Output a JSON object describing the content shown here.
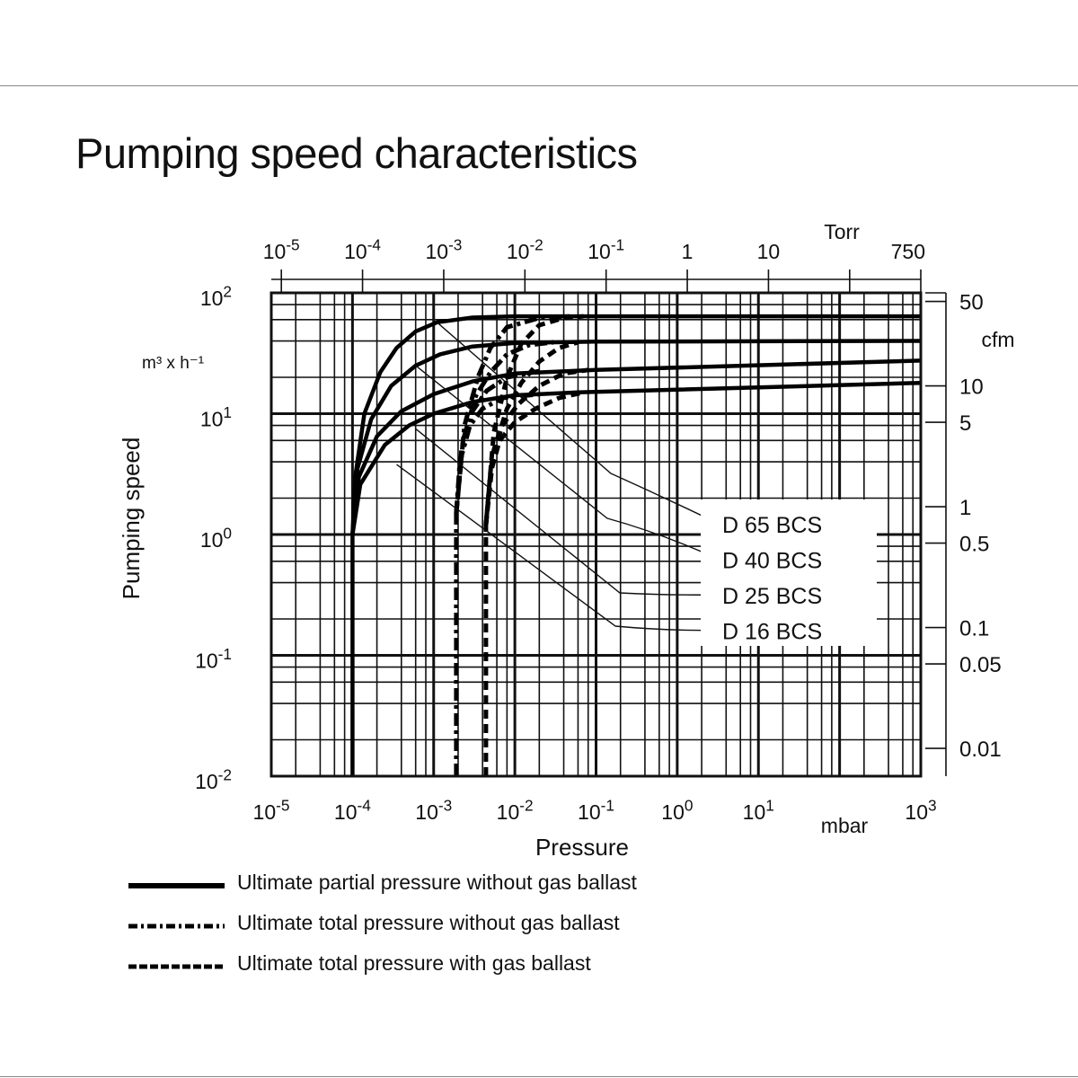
{
  "page": {
    "title": "Pumping speed characteristics"
  },
  "chart_data": {
    "type": "line",
    "title": "Pumping speed characteristics",
    "xlabel": "Pressure",
    "xunit": "mbar",
    "ylabel": "Pumping speed",
    "yunit": "m³ x h⁻¹",
    "xscale": "log",
    "yscale": "log",
    "xlim": [
      1e-05,
      1000
    ],
    "ylim": [
      0.01,
      100
    ],
    "grid": true,
    "x_ticks": [
      {
        "v": 1e-05,
        "b": "10",
        "e": "-5"
      },
      {
        "v": 0.0001,
        "b": "10",
        "e": "-4"
      },
      {
        "v": 0.001,
        "b": "10",
        "e": "-3"
      },
      {
        "v": 0.01,
        "b": "10",
        "e": "-2"
      },
      {
        "v": 0.1,
        "b": "10",
        "e": "-1"
      },
      {
        "v": 1,
        "b": "10",
        "e": "0"
      },
      {
        "v": 10,
        "b": "10",
        "e": "1"
      },
      {
        "v": 1000,
        "b": "10",
        "e": "3"
      }
    ],
    "y_ticks": [
      {
        "v": 100,
        "b": "10",
        "e": "2"
      },
      {
        "v": 10,
        "b": "10",
        "e": "1"
      },
      {
        "v": 1,
        "b": "10",
        "e": "0"
      },
      {
        "v": 0.1,
        "b": "10",
        "e": "-1"
      },
      {
        "v": 0.01,
        "b": "10",
        "e": "-2"
      }
    ],
    "top_axis": {
      "unit": "Torr",
      "ticks": [
        {
          "v": 1.33e-05,
          "b": "10",
          "e": "-5"
        },
        {
          "v": 0.000133,
          "b": "10",
          "e": "-4"
        },
        {
          "v": 0.00133,
          "b": "10",
          "e": "-3"
        },
        {
          "v": 0.0133,
          "b": "10",
          "e": "-2"
        },
        {
          "v": 0.133,
          "b": "10",
          "e": "-1"
        },
        {
          "v": 1.33,
          "b": "1",
          "e": ""
        },
        {
          "v": 13.3,
          "b": "10",
          "e": ""
        },
        {
          "v": 133,
          "b": "",
          "e": ""
        },
        {
          "v": 1000,
          "b": "750",
          "e": ""
        }
      ]
    },
    "right_axis": {
      "unit": "cfm",
      "ticks": [
        {
          "v": 50,
          "label": "50"
        },
        {
          "v": 10,
          "label": "10"
        },
        {
          "v": 5,
          "label": "5"
        },
        {
          "v": 1,
          "label": "1"
        },
        {
          "v": 0.5,
          "label": "0.5"
        },
        {
          "v": 0.1,
          "label": "0.1"
        },
        {
          "v": 0.05,
          "label": "0.05"
        },
        {
          "v": 0.01,
          "label": "0.01"
        }
      ]
    },
    "series": [
      {
        "name": "D 65 BCS",
        "style": "solid",
        "points": [
          [
            0.0001,
            0.01
          ],
          [
            0.0001,
            1
          ],
          [
            0.000108,
            3
          ],
          [
            0.00014,
            10
          ],
          [
            0.00022,
            22
          ],
          [
            0.00035,
            35
          ],
          [
            0.0006,
            48
          ],
          [
            0.0011,
            57
          ],
          [
            0.003,
            62.5
          ],
          [
            0.01,
            64
          ],
          [
            1000,
            64
          ]
        ]
      },
      {
        "name": "D 40 BCS",
        "style": "solid",
        "points": [
          [
            0.0001,
            1
          ],
          [
            0.000115,
            3.5
          ],
          [
            0.00017,
            9
          ],
          [
            0.0003,
            17
          ],
          [
            0.0006,
            25
          ],
          [
            0.0012,
            31
          ],
          [
            0.003,
            36
          ],
          [
            0.01,
            38.5
          ],
          [
            0.1,
            39.5
          ],
          [
            1000,
            40
          ]
        ]
      },
      {
        "name": "D 25 BCS",
        "style": "solid",
        "points": [
          [
            0.0001,
            1
          ],
          [
            0.00012,
            3
          ],
          [
            0.0002,
            6.5
          ],
          [
            0.0004,
            10.5
          ],
          [
            0.001,
            14.5
          ],
          [
            0.003,
            18.5
          ],
          [
            0.01,
            21.5
          ],
          [
            0.1,
            23
          ],
          [
            1000,
            27.5
          ]
        ]
      },
      {
        "name": "D 16 BCS",
        "style": "solid",
        "points": [
          [
            0.0001,
            1
          ],
          [
            0.000125,
            2.6
          ],
          [
            0.00025,
            5.5
          ],
          [
            0.0005,
            8
          ],
          [
            0.001,
            10
          ],
          [
            0.003,
            12.5
          ],
          [
            0.01,
            14.2
          ],
          [
            0.06,
            15
          ],
          [
            1000,
            18
          ]
        ]
      },
      {
        "name": "D 65 BCS",
        "style": "dashdot",
        "points": [
          [
            0.0019,
            0.01
          ],
          [
            0.0019,
            1.5
          ],
          [
            0.0024,
            8
          ],
          [
            0.0035,
            20
          ],
          [
            0.005,
            35
          ],
          [
            0.008,
            52
          ],
          [
            0.02,
            62
          ],
          [
            0.05,
            64
          ]
        ]
      },
      {
        "name": "D 40 BCS",
        "style": "dashdot",
        "points": [
          [
            0.0019,
            1.5
          ],
          [
            0.0023,
            6
          ],
          [
            0.0033,
            14
          ],
          [
            0.005,
            22
          ],
          [
            0.008,
            31
          ],
          [
            0.015,
            37
          ],
          [
            0.03,
            39
          ]
        ]
      },
      {
        "name": "D 25 BCS",
        "style": "dashdot",
        "points": [
          [
            0.0019,
            1.5
          ],
          [
            0.0022,
            5
          ],
          [
            0.003,
            10.5
          ],
          [
            0.0045,
            15.5
          ],
          [
            0.008,
            20
          ],
          [
            0.02,
            22.5
          ]
        ]
      },
      {
        "name": "D 16 BCS",
        "style": "dashdot",
        "points": [
          [
            0.0019,
            1.5
          ],
          [
            0.0021,
            4
          ],
          [
            0.0028,
            8
          ],
          [
            0.004,
            11
          ],
          [
            0.007,
            13.5
          ],
          [
            0.02,
            14.5
          ]
        ]
      },
      {
        "name": "D 65 BCS",
        "style": "dashed",
        "points": [
          [
            0.0044,
            0.01
          ],
          [
            0.0044,
            1.2
          ],
          [
            0.0055,
            7
          ],
          [
            0.008,
            20
          ],
          [
            0.012,
            38
          ],
          [
            0.02,
            54
          ],
          [
            0.04,
            62
          ],
          [
            0.07,
            64
          ]
        ]
      },
      {
        "name": "D 40 BCS",
        "style": "dashed",
        "points": [
          [
            0.0044,
            1.2
          ],
          [
            0.0055,
            5
          ],
          [
            0.008,
            11
          ],
          [
            0.012,
            18
          ],
          [
            0.02,
            27
          ],
          [
            0.035,
            35
          ],
          [
            0.06,
            39
          ]
        ]
      },
      {
        "name": "D 25 BCS",
        "style": "dashed",
        "points": [
          [
            0.0044,
            1.2
          ],
          [
            0.0052,
            4
          ],
          [
            0.007,
            8
          ],
          [
            0.011,
            12
          ],
          [
            0.02,
            17
          ],
          [
            0.04,
            21.5
          ],
          [
            0.08,
            23
          ]
        ]
      },
      {
        "name": "D 16 BCS",
        "style": "dashed",
        "points": [
          [
            0.0044,
            1.2
          ],
          [
            0.005,
            3.2
          ],
          [
            0.0065,
            6
          ],
          [
            0.01,
            8.5
          ],
          [
            0.018,
            11
          ],
          [
            0.035,
            13.5
          ],
          [
            0.07,
            15
          ]
        ]
      }
    ],
    "annotations": [
      {
        "label": "D 65 BCS",
        "from": [
          0.0011,
          57
        ]
      },
      {
        "label": "D 40 BCS",
        "from": [
          0.0006,
          25
        ]
      },
      {
        "label": "D 25 BCS",
        "from": [
          0.0006,
          7.5
        ]
      },
      {
        "label": "D 16 BCS",
        "from": [
          0.00035,
          3.8
        ]
      }
    ],
    "legend": {
      "placement": "bottom-left",
      "entries": [
        {
          "style": "solid",
          "label": "Ultimate partial pressure without gas ballast"
        },
        {
          "style": "dashdot",
          "label": "Ultimate total pressure without gas ballast"
        },
        {
          "style": "dashed",
          "label": "Ultimate total pressure with gas ballast"
        }
      ]
    }
  }
}
